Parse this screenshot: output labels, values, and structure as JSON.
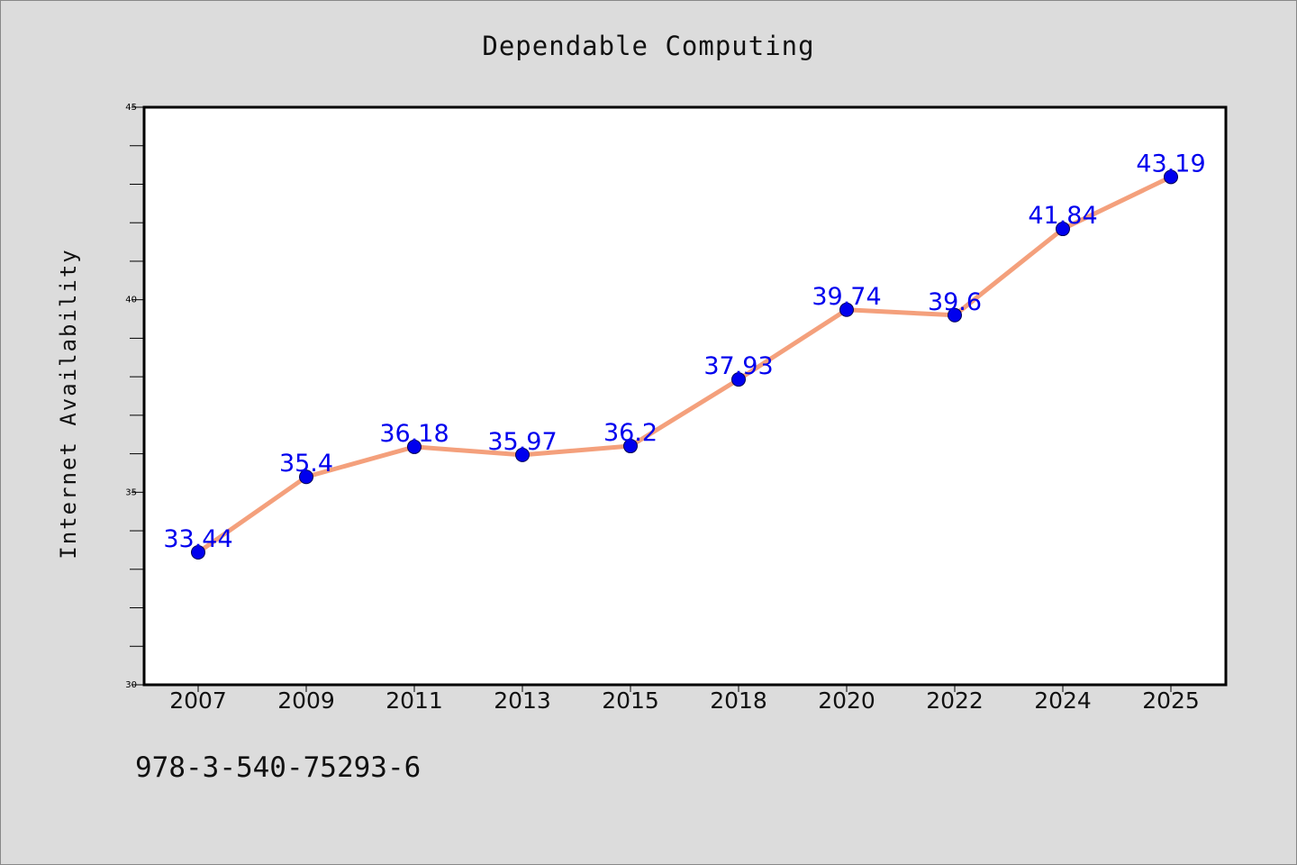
{
  "footnote": "978-3-540-75293-6",
  "chart_data": {
    "type": "line",
    "title": "Dependable Computing",
    "xlabel": "",
    "ylabel": "Internet Availability",
    "categories": [
      "2007",
      "2009",
      "2011",
      "2013",
      "2015",
      "2018",
      "2020",
      "2022",
      "2024",
      "2025"
    ],
    "series": [
      {
        "values": [
          33.44,
          35.4,
          36.18,
          35.97,
          36.2,
          37.93,
          39.74,
          39.6,
          41.84,
          43.19
        ],
        "labels": [
          "33.44",
          "35.4",
          "36.18",
          "35.97",
          "36.2",
          "37.93",
          "39.74",
          "39.6",
          "41.84",
          "43.19"
        ],
        "line_color": "#f4a07c",
        "marker_color": "#0000ee",
        "label_color": "#0000ee"
      }
    ],
    "ylim": [
      30,
      45
    ],
    "yticks": [
      "30",
      "35",
      "40",
      "45"
    ],
    "grid": false,
    "legend": "none"
  }
}
